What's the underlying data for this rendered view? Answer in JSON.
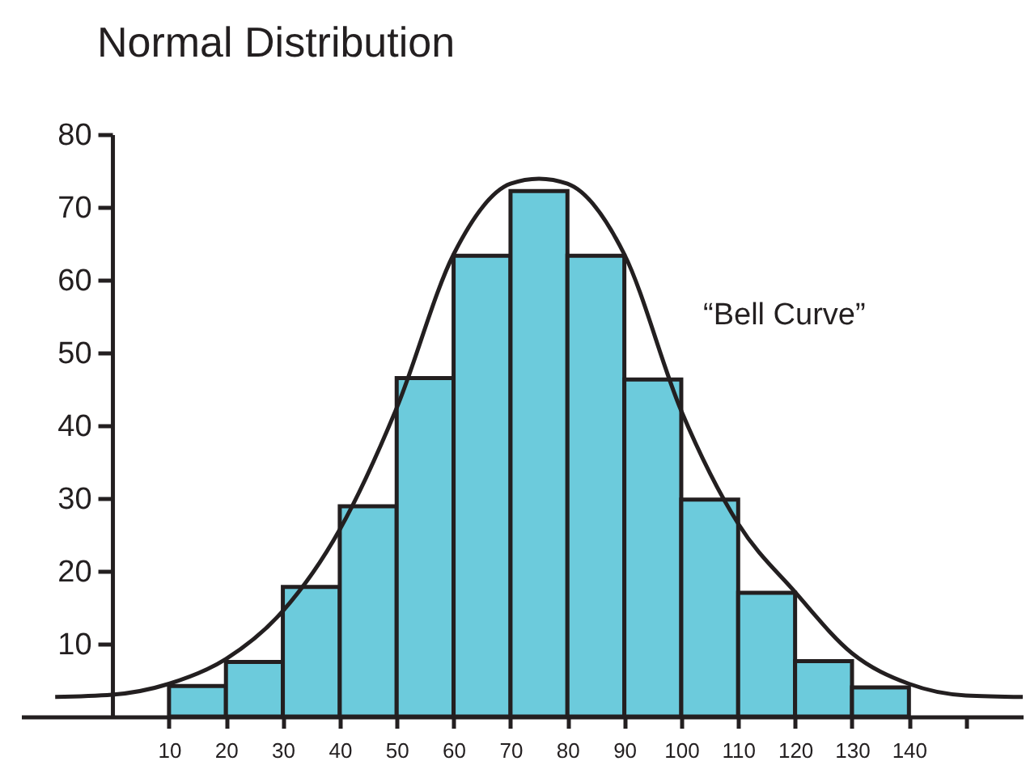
{
  "chart_data": {
    "type": "histogram",
    "title": "Normal Distribution",
    "bins": [
      10,
      20,
      30,
      40,
      50,
      60,
      70,
      80,
      90,
      100,
      110,
      120,
      130,
      140
    ],
    "values": [
      4.2,
      7.5,
      17.8,
      28.9,
      46.5,
      63.3,
      72.2,
      63.3,
      46.3,
      29.8,
      17,
      7.6,
      4
    ],
    "color": "#6ccbdc",
    "series": [
      {
        "type": "line",
        "color": "#231f20",
        "x": [
          -10,
          0,
          10,
          20,
          30,
          40,
          50,
          60,
          70,
          75,
          80,
          90,
          100,
          110,
          120,
          130,
          140,
          150,
          160
        ],
        "values": [
          2.7,
          3,
          4.5,
          7.9,
          14.5,
          25.7,
          42.4,
          63.5,
          73.2,
          73.9,
          73.2,
          63.5,
          42,
          26.5,
          17.1,
          8.7,
          4.5,
          2.9,
          2.7
        ]
      }
    ],
    "annotations": [
      "“Bell Curve”"
    ],
    "xlim": [
      -16,
      160
    ],
    "xticks": [
      10,
      20,
      30,
      40,
      50,
      60,
      70,
      80,
      90,
      100,
      110,
      120,
      130,
      140,
      {
        "value": 150,
        "label": null
      }
    ],
    "ylim": [
      0,
      80
    ],
    "yticks": [
      10,
      20,
      30,
      40,
      50,
      60,
      70,
      80
    ],
    "grid": false
  }
}
